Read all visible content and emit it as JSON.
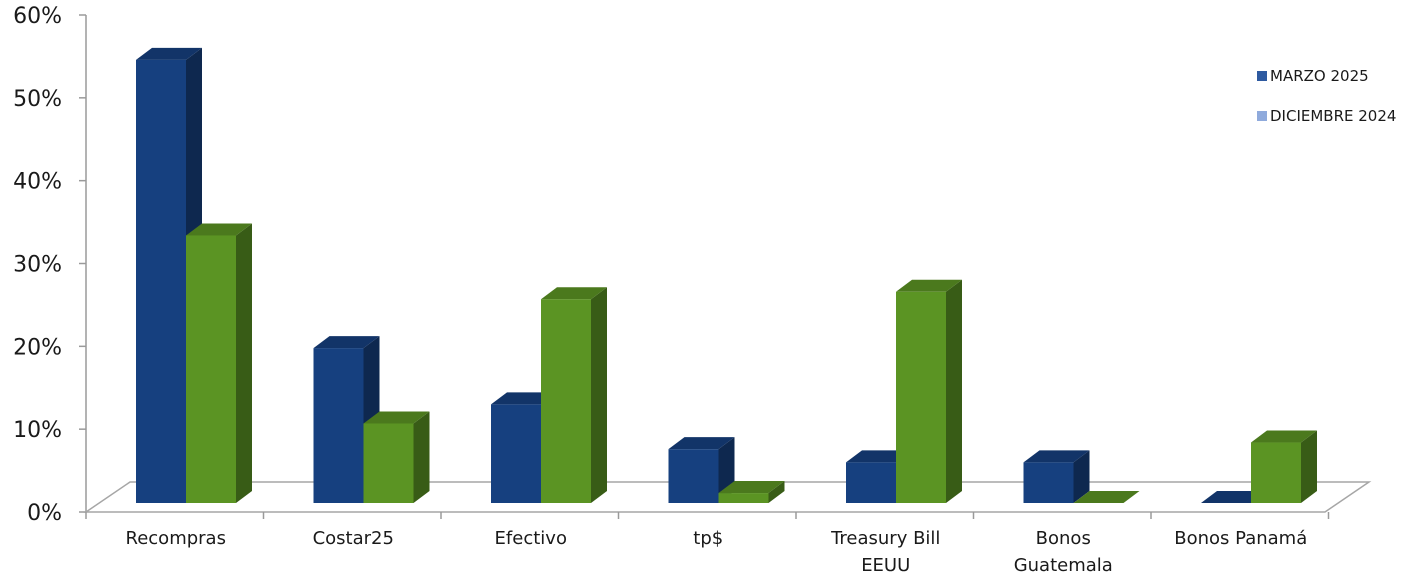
{
  "chart_data": {
    "type": "bar",
    "categories": [
      [
        "Recompras"
      ],
      [
        "Costar25"
      ],
      [
        "Efectivo"
      ],
      [
        "tp$"
      ],
      [
        "Treasury Bill",
        "EEUU"
      ],
      [
        "Bonos",
        "Guatemala"
      ],
      [
        "Bonos Panamá"
      ]
    ],
    "series": [
      {
        "name": "MARZO 2025",
        "values": [
          53.5,
          18.7,
          11.9,
          6.5,
          4.9,
          4.9,
          0.0
        ],
        "color": "#16407f"
      },
      {
        "name": "DICIEMBRE 2024",
        "values": [
          32.3,
          9.6,
          24.6,
          1.2,
          25.5,
          0.0,
          7.3
        ],
        "color": "#5b9423"
      }
    ],
    "legend_marker_colors": [
      "#2e5aa0",
      "#8faadc"
    ],
    "y_ticks": [
      "0%",
      "10%",
      "20%",
      "30%",
      "40%",
      "50%",
      "60%"
    ],
    "ylim": [
      0,
      60
    ],
    "grid": false,
    "legend_position": "right",
    "title": "",
    "xlabel": "",
    "ylabel": ""
  }
}
